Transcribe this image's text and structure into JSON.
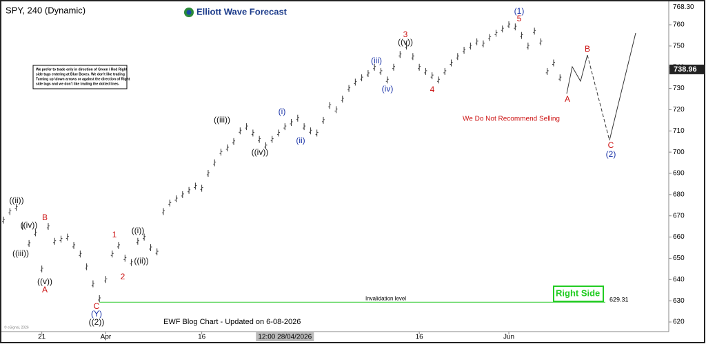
{
  "chart_data": {
    "type": "ohlc",
    "title": "SPY, 240 (Dynamic)",
    "brand": "Elliott Wave Forecast",
    "series": [
      {
        "name": "SPY",
        "color": "#333333",
        "values": [
          668,
          672,
          674,
          665,
          657,
          662,
          645,
          665,
          658,
          659,
          660,
          656,
          652,
          646,
          638,
          631,
          640,
          652,
          656,
          650,
          648,
          658,
          660,
          655,
          653,
          672,
          676,
          678,
          680,
          682,
          684,
          683,
          690,
          695,
          700,
          702,
          705,
          710,
          712,
          709,
          706,
          703,
          706,
          709,
          712,
          714,
          716,
          712,
          710,
          709,
          715,
          722,
          720,
          725,
          730,
          733,
          735,
          737,
          740,
          738,
          734,
          740,
          746,
          750,
          745,
          740,
          738,
          736,
          734,
          738,
          742,
          745,
          748,
          750,
          752,
          751,
          754,
          756,
          758,
          760,
          759,
          755,
          750,
          757,
          752,
          738,
          742,
          735
        ]
      }
    ],
    "xlim": [
      0,
      104
    ],
    "xticks": [
      {
        "value": 6,
        "label": "21"
      },
      {
        "value": 16,
        "label": "Apr"
      },
      {
        "value": 31,
        "label": "16"
      },
      {
        "value": 44,
        "label": "12:00 28/04/2026"
      },
      {
        "value": 65,
        "label": "16"
      },
      {
        "value": 79,
        "label": "Jun"
      }
    ],
    "ylim": [
      620,
      768.3
    ],
    "yticks": [
      620,
      630,
      640,
      650,
      660,
      670,
      680,
      690,
      700,
      710,
      720,
      730,
      740,
      750,
      760
    ],
    "top_label": {
      "value": 768.3,
      "label": "768.30"
    },
    "last_price": {
      "value": 738.96,
      "label": "738.96"
    },
    "invalidation": {
      "value": 629.31,
      "label": "629.31",
      "text": "Invalidation level",
      "color": "#33cc33"
    },
    "annotations": [
      {
        "text": "((ii))",
        "color": "#111111"
      },
      {
        "text": "((iii))",
        "color": "#111111"
      },
      {
        "text": "((iv))",
        "color": "#111111"
      },
      {
        "text": "((v))",
        "color": "#111111"
      },
      {
        "text": "A",
        "color": "#cc1111"
      },
      {
        "text": "B",
        "color": "#cc1111"
      },
      {
        "text": "C",
        "color": "#cc1111"
      },
      {
        "text": "(Y)",
        "color": "#1a33a8"
      },
      {
        "text": "((2))",
        "color": "#111111"
      },
      {
        "text": "1",
        "color": "#cc1111"
      },
      {
        "text": "2",
        "color": "#cc1111"
      },
      {
        "text": "((i))",
        "color": "#111111"
      },
      {
        "text": "((ii))",
        "color": "#111111"
      },
      {
        "text": "((iii))",
        "color": "#111111"
      },
      {
        "text": "((iv))",
        "color": "#111111"
      },
      {
        "text": "(i)",
        "color": "#1a33a8"
      },
      {
        "text": "(ii)",
        "color": "#1a33a8"
      },
      {
        "text": "(iii)",
        "color": "#1a33a8"
      },
      {
        "text": "(iv)",
        "color": "#1a33a8"
      },
      {
        "text": "((v))",
        "color": "#111111"
      },
      {
        "text": "3",
        "color": "#cc1111"
      },
      {
        "text": "4",
        "color": "#cc1111"
      },
      {
        "text": "(1)",
        "color": "#1a33a8"
      },
      {
        "text": "5",
        "color": "#cc1111"
      },
      {
        "text": "A",
        "color": "#cc1111"
      },
      {
        "text": "B",
        "color": "#cc1111"
      },
      {
        "text": "C",
        "color": "#cc1111"
      },
      {
        "text": "(2)",
        "color": "#1a33a8"
      }
    ],
    "note": [
      "We prefer to trade only in direction of Green / Red Right",
      "side tags entering at Blue Boxes. We don't like trading",
      "Turning up \\down arrows or against the direction of Right",
      "side tags and we don't like trading the dotted lines."
    ],
    "warning": "We Do Not Recommend Selling",
    "right_side": "Right Side",
    "footer": "EWF Blog Chart - Updated on 6-08-2026",
    "copyright": "© eSignal, 2026"
  }
}
